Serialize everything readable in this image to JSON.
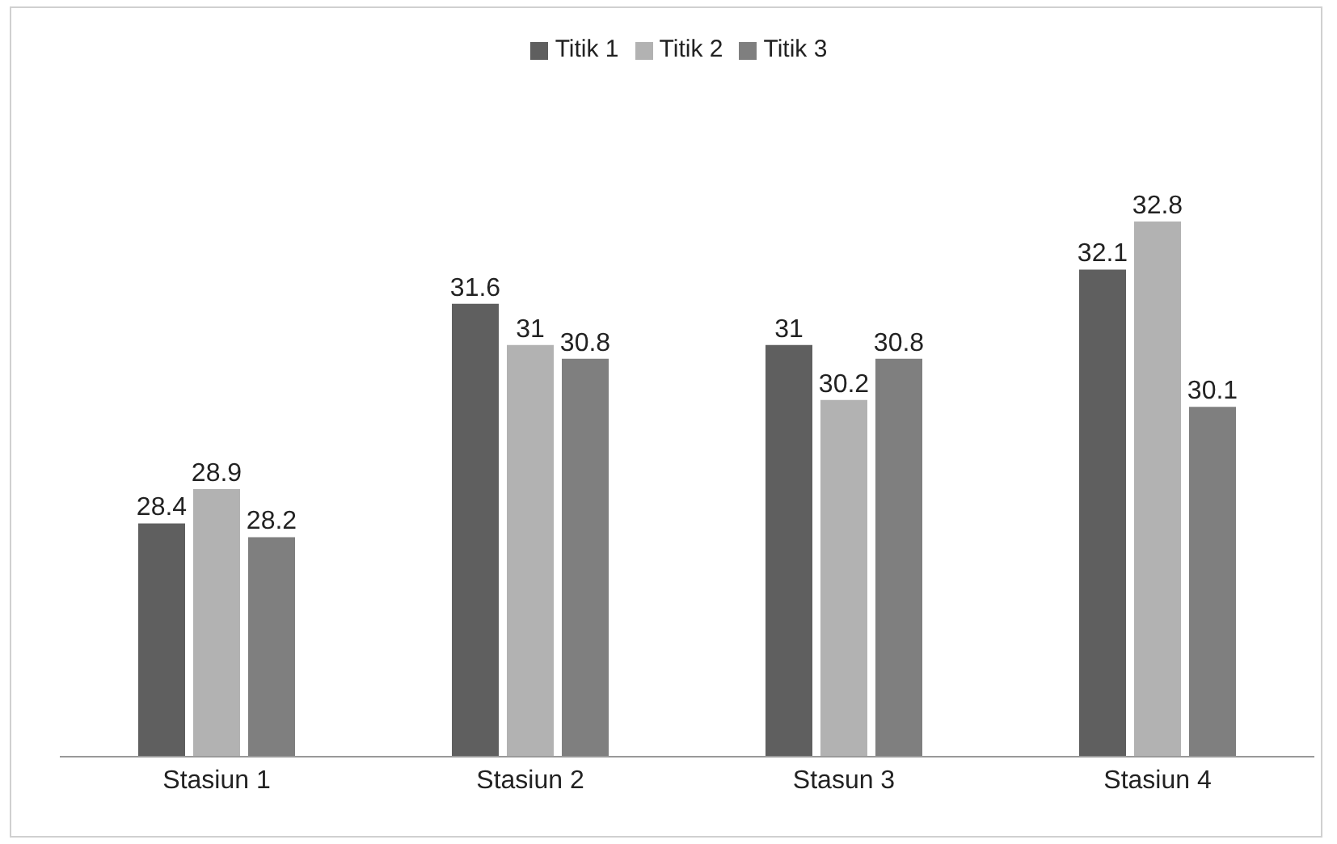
{
  "chart_data": {
    "type": "bar",
    "categories": [
      "Stasiun 1",
      "Stasiun 2",
      "Stasun 3",
      "Stasiun 4"
    ],
    "series": [
      {
        "name": "Titik 1",
        "color": "#5f5f5f",
        "values": [
          28.4,
          31.6,
          31,
          32.1
        ]
      },
      {
        "name": "Titik 2",
        "color": "#b2b2b2",
        "values": [
          28.9,
          31,
          30.2,
          32.8
        ]
      },
      {
        "name": "Titik 3",
        "color": "#7f7f7f",
        "values": [
          28.2,
          30.8,
          30.8,
          30.1
        ]
      }
    ],
    "ylim": [
      25,
      32.8
    ],
    "tick_labels": "x",
    "data_labels": true,
    "legend": "top",
    "grid": false
  }
}
